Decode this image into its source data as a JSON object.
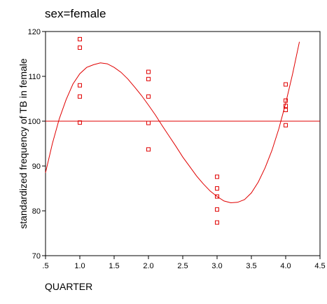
{
  "chart_data": {
    "type": "scatter",
    "title": "sex=female",
    "xlabel": "QUARTER",
    "ylabel": "standardized frequency of TB in female",
    "xlim": [
      0.5,
      4.5
    ],
    "ylim": [
      70,
      120
    ],
    "xticks": [
      ".5",
      "1.0",
      "1.5",
      "2.0",
      "2.5",
      "3.0",
      "3.5",
      "4.0",
      "4.5"
    ],
    "yticks": [
      "70",
      "80",
      "90",
      "100",
      "110",
      "120"
    ],
    "grid": false,
    "color": "#e00000",
    "reference_line": 100,
    "points": [
      {
        "x": 1,
        "y": 118.3
      },
      {
        "x": 1,
        "y": 116.4
      },
      {
        "x": 1,
        "y": 108.0
      },
      {
        "x": 1,
        "y": 105.5
      },
      {
        "x": 1,
        "y": 99.7
      },
      {
        "x": 2,
        "y": 111.0
      },
      {
        "x": 2,
        "y": 109.4
      },
      {
        "x": 2,
        "y": 105.5
      },
      {
        "x": 2,
        "y": 99.6
      },
      {
        "x": 2,
        "y": 93.7
      },
      {
        "x": 3,
        "y": 87.6
      },
      {
        "x": 3,
        "y": 85.0
      },
      {
        "x": 3,
        "y": 83.2
      },
      {
        "x": 3,
        "y": 80.3
      },
      {
        "x": 3,
        "y": 77.4
      },
      {
        "x": 4,
        "y": 108.2
      },
      {
        "x": 4,
        "y": 104.6
      },
      {
        "x": 4,
        "y": 103.4
      },
      {
        "x": 4,
        "y": 102.5
      },
      {
        "x": 4,
        "y": 99.1
      }
    ],
    "fit_curve": [
      {
        "x": 0.5,
        "y": 88.5
      },
      {
        "x": 0.6,
        "y": 95.0
      },
      {
        "x": 0.7,
        "y": 100.5
      },
      {
        "x": 0.8,
        "y": 104.8
      },
      {
        "x": 0.9,
        "y": 108.3
      },
      {
        "x": 1.0,
        "y": 110.6
      },
      {
        "x": 1.1,
        "y": 112.0
      },
      {
        "x": 1.2,
        "y": 112.6
      },
      {
        "x": 1.3,
        "y": 113.0
      },
      {
        "x": 1.4,
        "y": 112.8
      },
      {
        "x": 1.5,
        "y": 112.0
      },
      {
        "x": 1.6,
        "y": 110.9
      },
      {
        "x": 1.7,
        "y": 109.4
      },
      {
        "x": 1.8,
        "y": 107.6
      },
      {
        "x": 1.9,
        "y": 105.7
      },
      {
        "x": 2.0,
        "y": 103.6
      },
      {
        "x": 2.1,
        "y": 101.4
      },
      {
        "x": 2.2,
        "y": 99.0
      },
      {
        "x": 2.3,
        "y": 96.7
      },
      {
        "x": 2.4,
        "y": 94.4
      },
      {
        "x": 2.5,
        "y": 92.0
      },
      {
        "x": 2.6,
        "y": 89.9
      },
      {
        "x": 2.7,
        "y": 87.8
      },
      {
        "x": 2.8,
        "y": 86.0
      },
      {
        "x": 2.9,
        "y": 84.4
      },
      {
        "x": 3.0,
        "y": 83.2
      },
      {
        "x": 3.1,
        "y": 82.2
      },
      {
        "x": 3.2,
        "y": 81.8
      },
      {
        "x": 3.3,
        "y": 81.9
      },
      {
        "x": 3.4,
        "y": 82.5
      },
      {
        "x": 3.5,
        "y": 84.0
      },
      {
        "x": 3.6,
        "y": 86.4
      },
      {
        "x": 3.7,
        "y": 89.6
      },
      {
        "x": 3.8,
        "y": 93.5
      },
      {
        "x": 3.9,
        "y": 98.3
      },
      {
        "x": 4.0,
        "y": 104.0
      },
      {
        "x": 4.1,
        "y": 110.5
      },
      {
        "x": 4.2,
        "y": 117.7
      }
    ]
  }
}
